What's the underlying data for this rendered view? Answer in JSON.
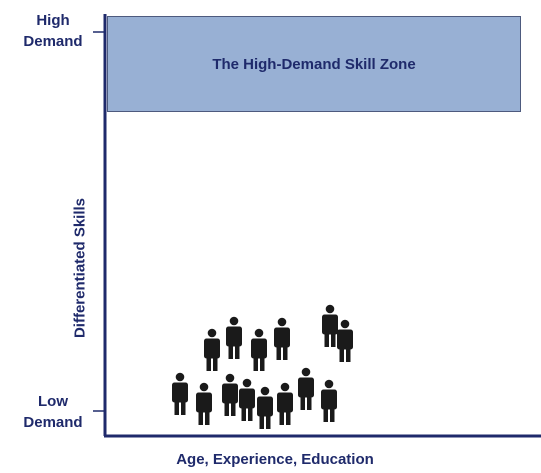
{
  "labels": {
    "high": "High\nDemand",
    "high_line1": "High",
    "high_line2": "Demand",
    "low_line1": "Low",
    "low_line2": "Demand",
    "y_axis": "Differentiated Skills",
    "x_axis": "Age, Experience, Education"
  },
  "zone": {
    "title": "The High-Demand Skill Zone",
    "fill_color": "#98b0d4"
  },
  "colors": {
    "text": "#1f2a6b",
    "axis": "#1f2a6b",
    "person": "#1a1a1a"
  },
  "people_icon": "person-icon"
}
